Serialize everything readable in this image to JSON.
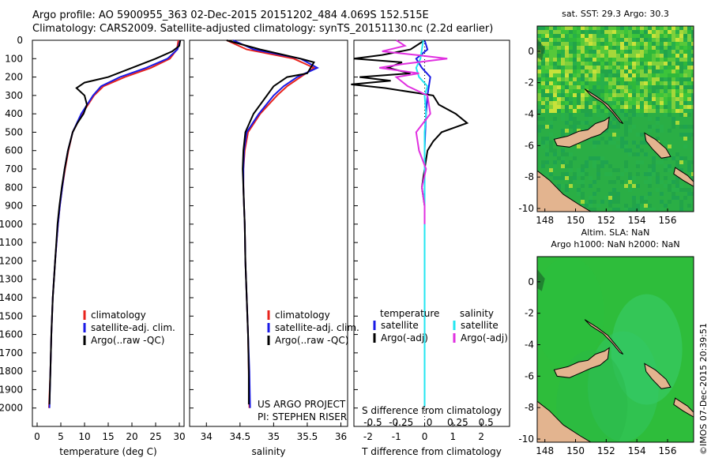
{
  "header": {
    "line1": "Argo profile: AO 5900955_363 02-Dec-2015 20151202_484 4.069S 152.515E",
    "line2": "Climatology: CARS2009. Satellite-adjusted climatology: synTS_20151130.nc (2.2d earlier)"
  },
  "colors": {
    "climatology": "#e8231c",
    "satellite": "#1a1ae6",
    "argo": "#000000",
    "satellite_salinity": "#22e6f0",
    "argo_salinity": "#e030e0",
    "land": "#e3b48f",
    "ocean": "#2ebd3b"
  },
  "chart_data": [
    {
      "type": "line",
      "name": "temperature-profile",
      "xlabel": "temperature (deg C)",
      "ylabel": "",
      "xlim": [
        -1,
        31
      ],
      "ylim": [
        2100,
        0
      ],
      "xticks": [
        0,
        5,
        10,
        15,
        20,
        25,
        30
      ],
      "xtick_labels": [
        "0",
        "5",
        "10",
        "15",
        "20",
        "25",
        "30"
      ],
      "yticks": [
        0,
        100,
        200,
        300,
        400,
        500,
        600,
        700,
        800,
        900,
        1000,
        1100,
        1200,
        1300,
        1400,
        1500,
        1600,
        1700,
        1800,
        1900,
        2000
      ],
      "ytick_labels": [
        "0",
        "100",
        "200",
        "300",
        "400",
        "500",
        "600",
        "700",
        "800",
        "900",
        "1000",
        "1100",
        "1200",
        "1300",
        "1400",
        "1500",
        "1600",
        "1700",
        "1800",
        "1900",
        "2000"
      ],
      "legend": [
        "climatology",
        "satellite-adj. clim.",
        "Argo(..raw -QC)"
      ],
      "legend_position": "bottom-right",
      "series": [
        {
          "name": "climatology",
          "color": "#e8231c",
          "depth": [
            0,
            50,
            100,
            150,
            200,
            250,
            300,
            400,
            500,
            600,
            700,
            800,
            900,
            1000,
            1200,
            1400,
            1600,
            1800,
            2000
          ],
          "values": [
            29.8,
            29.5,
            28.0,
            24.0,
            18.5,
            14.0,
            12.0,
            9.5,
            7.5,
            6.6,
            5.9,
            5.3,
            4.8,
            4.4,
            3.8,
            3.3,
            3.0,
            2.8,
            2.5
          ]
        },
        {
          "name": "satellite-adj. clim.",
          "color": "#1a1ae6",
          "depth": [
            0,
            50,
            100,
            150,
            200,
            250,
            300,
            400,
            500,
            600,
            700,
            800,
            900,
            1000,
            1200,
            1400,
            1600,
            1800,
            2000
          ],
          "values": [
            30.2,
            29.6,
            27.5,
            23.0,
            17.5,
            13.5,
            11.8,
            9.3,
            7.5,
            6.5,
            5.8,
            5.3,
            4.8,
            4.4,
            3.8,
            3.3,
            3.0,
            2.8,
            2.6
          ]
        },
        {
          "name": "Argo(..raw -QC)",
          "color": "#000000",
          "depth": [
            0,
            30,
            60,
            100,
            150,
            200,
            230,
            260,
            300,
            350,
            400,
            450,
            500,
            600,
            700,
            800,
            900,
            1000,
            1200,
            1400,
            1600,
            1800,
            1980
          ],
          "values": [
            30.2,
            30.0,
            28.5,
            25.0,
            20.0,
            15.0,
            10.0,
            8.3,
            10.0,
            10.5,
            9.8,
            8.5,
            7.5,
            6.5,
            5.8,
            5.2,
            4.7,
            4.3,
            3.8,
            3.3,
            3.0,
            2.8,
            2.6
          ]
        }
      ]
    },
    {
      "type": "line",
      "name": "salinity-profile",
      "xlabel": "salinity",
      "ylabel": "",
      "xlim": [
        33.75,
        36.1
      ],
      "ylim": [
        2100,
        0
      ],
      "xticks": [
        34,
        34.5,
        35,
        35.5,
        36
      ],
      "xtick_labels": [
        "34",
        "34.5",
        "35",
        "35.5",
        "36"
      ],
      "legend": [
        "climatology",
        "satellite-adj. clim.",
        "Argo(..raw -QC)"
      ],
      "legend_position": "bottom-right",
      "annotation": [
        "US ARGO PROJECT",
        "PI: STEPHEN RISER"
      ],
      "series": [
        {
          "name": "climatology",
          "color": "#e8231c",
          "depth": [
            0,
            50,
            100,
            150,
            200,
            250,
            300,
            400,
            500,
            600,
            700,
            800,
            900,
            1000,
            1200,
            1400,
            1600,
            1800,
            2000
          ],
          "values": [
            34.3,
            34.6,
            35.3,
            35.6,
            35.4,
            35.2,
            35.05,
            34.8,
            34.62,
            34.57,
            34.55,
            34.55,
            34.56,
            34.57,
            34.58,
            34.6,
            34.62,
            34.63,
            34.64
          ]
        },
        {
          "name": "satellite-adj. clim.",
          "color": "#1a1ae6",
          "depth": [
            0,
            50,
            100,
            150,
            200,
            250,
            300,
            400,
            500,
            600,
            700,
            800,
            900,
            1000,
            1200,
            1400,
            1600,
            1800,
            2000
          ],
          "values": [
            34.4,
            34.7,
            35.4,
            35.65,
            35.35,
            35.15,
            35.0,
            34.78,
            34.6,
            34.56,
            34.55,
            34.55,
            34.56,
            34.57,
            34.58,
            34.6,
            34.62,
            34.64,
            34.65
          ]
        },
        {
          "name": "Argo(..raw -QC)",
          "color": "#000000",
          "depth": [
            0,
            50,
            100,
            120,
            150,
            180,
            200,
            250,
            300,
            400,
            500,
            600,
            700,
            800,
            900,
            1000,
            1200,
            1400,
            1600,
            1800,
            1980
          ],
          "values": [
            34.3,
            34.8,
            35.4,
            35.6,
            35.55,
            35.5,
            35.2,
            35.0,
            34.9,
            34.7,
            34.58,
            34.55,
            34.54,
            34.55,
            34.56,
            34.57,
            34.58,
            34.6,
            34.62,
            34.63,
            34.63
          ]
        }
      ]
    },
    {
      "type": "line",
      "name": "difference-profile",
      "xlabel": "T difference from climatology",
      "top_label": "S difference from climatology",
      "xlim": [
        -2.5,
        3.0
      ],
      "ylim": [
        2100,
        0
      ],
      "xticks": [
        -2,
        -1,
        0,
        1,
        2
      ],
      "xtick_labels": [
        "-2",
        "-1",
        "0",
        "1",
        "2"
      ],
      "sticks": [
        -2,
        -1,
        0,
        1,
        2
      ],
      "stick_labels": [
        "-0.5",
        "-0.25",
        "0",
        "0.25",
        "0.5"
      ],
      "legend_left": [
        "temperature",
        "satellite",
        "Argo(-adj)"
      ],
      "legend_right": [
        "salinity",
        "satellite",
        "Argo(-adj)"
      ],
      "legend_position": "bottom",
      "series": [
        {
          "name": "temperature satellite",
          "color": "#1a1ae6",
          "depth": [
            0,
            50,
            100,
            150,
            200,
            300,
            400,
            500,
            600,
            800,
            1000,
            1500,
            1990
          ],
          "values": [
            0.0,
            0.1,
            -0.3,
            -0.1,
            0.2,
            0.1,
            0.05,
            0.02,
            0.0,
            0.0,
            0.0,
            0.0,
            0.0
          ]
        },
        {
          "name": "temperature Argo(-adj)",
          "color": "#000000",
          "depth": [
            0,
            50,
            80,
            100,
            120,
            150,
            180,
            200,
            220,
            240,
            260,
            300,
            350,
            400,
            450,
            500,
            550,
            600,
            700,
            800,
            900,
            1000
          ],
          "values": [
            0.0,
            -0.5,
            -1.5,
            -2.5,
            -0.8,
            -1.3,
            -0.5,
            -2.3,
            -1.2,
            -2.6,
            -1.4,
            0.3,
            0.5,
            1.1,
            1.5,
            0.6,
            0.3,
            0.1,
            0.0,
            -0.1,
            0.0,
            0.0
          ]
        },
        {
          "name": "salinity satellite",
          "color": "#22e6f0",
          "depth": [
            0,
            50,
            100,
            150,
            200,
            250,
            300,
            400,
            500,
            600,
            800,
            1000,
            1500,
            1990
          ],
          "values": [
            -0.05,
            -0.1,
            -0.15,
            -0.3,
            -0.2,
            0.1,
            0.0,
            0.05,
            0.0,
            0.0,
            0.0,
            0.0,
            0.0,
            0.0
          ]
        },
        {
          "name": "salinity Argo(-adj)",
          "color": "#e030e0",
          "depth": [
            0,
            30,
            60,
            80,
            100,
            130,
            150,
            180,
            200,
            250,
            300,
            400,
            500,
            600,
            700,
            800,
            900,
            1000
          ],
          "values": [
            -1.0,
            -0.7,
            -1.5,
            -0.3,
            0.8,
            -0.8,
            -1.6,
            -0.2,
            -1.0,
            -0.6,
            0.1,
            0.2,
            -0.3,
            -0.2,
            0.05,
            -0.1,
            0.0,
            0.0
          ]
        }
      ]
    },
    {
      "type": "heatmap",
      "name": "sst-map",
      "title": "sat. SST: 29.3  Argo: 30.3",
      "xlim": [
        147.5,
        157.7
      ],
      "ylim": [
        -10.2,
        1.6
      ],
      "xticks": [
        148,
        150,
        152,
        154,
        156
      ],
      "xtick_labels": [
        "148",
        "150",
        "152",
        "154",
        "156"
      ],
      "yticks": [
        0,
        -2,
        -4,
        -6,
        -8,
        -10
      ],
      "ytick_labels": [
        "0",
        "-2",
        "-4",
        "-6",
        "-8",
        "-10"
      ]
    },
    {
      "type": "heatmap",
      "name": "sla-map",
      "title_lines": [
        "Altim. SLA: NaN",
        "Argo h1000: NaN h2000: NaN"
      ],
      "xlim": [
        147.5,
        157.7
      ],
      "ylim": [
        -10.2,
        1.6
      ],
      "xticks": [
        148,
        150,
        152,
        154,
        156
      ],
      "xtick_labels": [
        "148",
        "150",
        "152",
        "154",
        "156"
      ],
      "yticks": [
        0,
        -2,
        -4,
        -6,
        -8,
        -10
      ],
      "ytick_labels": [
        "0",
        "-2",
        "-4",
        "-6",
        "-8",
        "-10"
      ]
    }
  ],
  "stamp": "©IMOS 07-Dec-2015 20:39:51"
}
